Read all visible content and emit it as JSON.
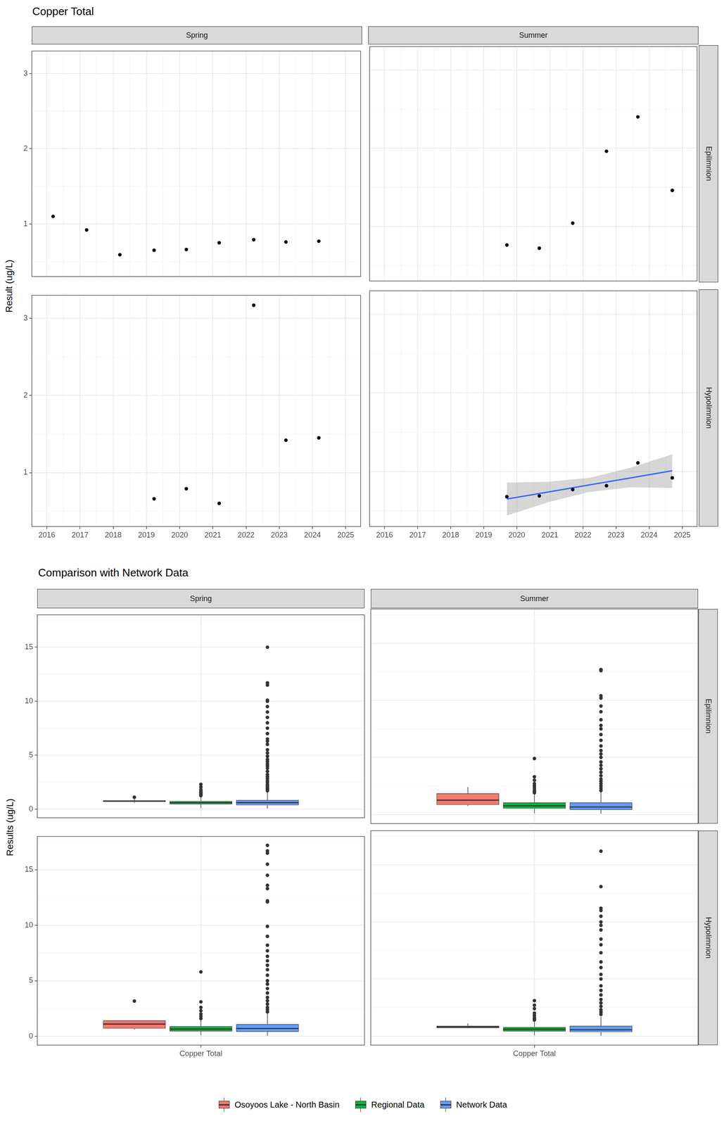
{
  "chart_data": [
    {
      "type": "scatter",
      "title": "Copper Total",
      "y_label": "Result (ug/L)",
      "columns": [
        "Spring",
        "Summer"
      ],
      "rows": [
        "Epilimnion",
        "Hypolimnion"
      ],
      "xlim": [
        2015.55,
        2025.45
      ],
      "xticks": [
        2016,
        2017,
        2018,
        2019,
        2020,
        2021,
        2022,
        2023,
        2024,
        2025
      ],
      "ylim": [
        0.3,
        3.3
      ],
      "yticks": [
        1,
        2,
        3
      ],
      "grid": true,
      "color": "#000000",
      "panels": [
        {
          "column": "Spring",
          "row": "Epilimnion",
          "x": [
            2016.19,
            2017.2,
            2018.2,
            2019.23,
            2020.2,
            2021.19,
            2022.23,
            2023.2,
            2024.19
          ],
          "values": [
            1.1,
            0.92,
            0.59,
            0.65,
            0.66,
            0.75,
            0.79,
            0.76,
            0.77
          ]
        },
        {
          "column": "Summer",
          "row": "Epilimnion",
          "x": [
            2019.7,
            2020.68,
            2021.69,
            2022.71,
            2023.66,
            2024.7
          ],
          "values": [
            0.76,
            0.72,
            1.04,
            1.96,
            2.4,
            1.46
          ]
        },
        {
          "column": "Spring",
          "row": "Hypolimnion",
          "x": [
            2019.23,
            2020.2,
            2021.19,
            2022.23,
            2023.2,
            2024.19
          ],
          "values": [
            0.66,
            0.79,
            0.6,
            3.17,
            1.42,
            1.45
          ]
        },
        {
          "column": "Summer",
          "row": "Hypolimnion",
          "x": [
            2019.7,
            2020.68,
            2021.69,
            2022.71,
            2023.66,
            2024.7
          ],
          "values": [
            0.68,
            0.69,
            0.77,
            0.82,
            1.11,
            0.92
          ],
          "trend": {
            "color": "#3366ff",
            "x": [
              2019.7,
              2020.95,
              2022.2,
              2023.45,
              2024.7
            ],
            "values": [
              0.65,
              0.74,
              0.83,
              0.92,
              1.01
            ],
            "lower": [
              0.44,
              0.61,
              0.74,
              0.8,
              0.79
            ],
            "upper": [
              0.86,
              0.87,
              0.92,
              1.05,
              1.22
            ]
          }
        }
      ]
    },
    {
      "type": "boxplot",
      "title": "Comparison with Network Data",
      "y_label": "Results (ug/L)",
      "columns": [
        "Spring",
        "Summer"
      ],
      "rows": [
        "Epilimnion",
        "Hypolimnion"
      ],
      "categories": [
        "Copper Total"
      ],
      "ylim": [
        -0.8,
        18
      ],
      "yticks": [
        0,
        5,
        10,
        15
      ],
      "grid": true,
      "legend": "bottom",
      "series": [
        {
          "name": "Osoyoos Lake - North Basin",
          "color": "#f8766d"
        },
        {
          "name": "Regional Data",
          "color": "#00ba38"
        },
        {
          "name": "Network Data",
          "color": "#619cff"
        }
      ],
      "panels": [
        {
          "column": "Spring",
          "row": "Epilimnion",
          "boxes": [
            {
              "min": 0.59,
              "q1": 0.66,
              "median": 0.76,
              "q3": 0.79,
              "max": 0.92,
              "outliers": [
                1.1
              ]
            },
            {
              "min": 0.1,
              "q1": 0.45,
              "median": 0.6,
              "q3": 0.75,
              "max": 1.15,
              "outliers": [
                1.25,
                1.35,
                1.45,
                1.55,
                1.65,
                1.8,
                2.05,
                2.3
              ]
            },
            {
              "min": 0.05,
              "q1": 0.35,
              "median": 0.6,
              "q3": 0.85,
              "max": 1.6,
              "outliers": [
                1.7,
                1.8,
                1.9,
                2.0,
                2.1,
                2.2,
                2.3,
                2.5,
                2.6,
                2.8,
                3.0,
                3.2,
                3.5,
                3.8,
                4.0,
                4.2,
                4.4,
                4.6,
                4.9,
                5.2,
                5.5,
                6.0,
                6.3,
                6.5,
                7.0,
                7.5,
                8.0,
                8.5,
                9.0,
                9.5,
                10.0,
                10.1,
                11.5,
                11.7,
                15.0
              ]
            }
          ]
        },
        {
          "column": "Summer",
          "row": "Epilimnion",
          "boxes": [
            {
              "min": 0.72,
              "q1": 0.83,
              "median": 1.25,
              "q3": 1.84,
              "max": 2.4,
              "outliers": []
            },
            {
              "min": 0.1,
              "q1": 0.5,
              "median": 0.75,
              "q3": 1.05,
              "max": 1.8,
              "outliers": [
                1.9,
                2.0,
                2.1,
                2.3,
                2.5,
                2.7,
                3.0,
                3.3,
                4.9
              ]
            },
            {
              "min": 0.05,
              "q1": 0.4,
              "median": 0.65,
              "q3": 1.05,
              "max": 2.0,
              "outliers": [
                2.1,
                2.3,
                2.5,
                2.7,
                2.9,
                3.1,
                3.4,
                3.7,
                4.0,
                4.3,
                4.6,
                5.0,
                5.3,
                5.6,
                6.0,
                6.5,
                7.0,
                7.5,
                7.8,
                8.3,
                9.0,
                9.5,
                10.2,
                10.4,
                12.6,
                12.7
              ]
            }
          ]
        },
        {
          "column": "Spring",
          "row": "Hypolimnion",
          "boxes": [
            {
              "min": 0.6,
              "q1": 0.69,
              "median": 1.1,
              "q3": 1.44,
              "max": 1.45,
              "outliers": [
                3.17
              ]
            },
            {
              "min": 0.1,
              "q1": 0.45,
              "median": 0.65,
              "q3": 0.9,
              "max": 1.5,
              "outliers": [
                1.6,
                1.8,
                2.0,
                2.3,
                2.6,
                3.1,
                5.8
              ]
            },
            {
              "min": 0.05,
              "q1": 0.4,
              "median": 0.7,
              "q3": 1.1,
              "max": 2.1,
              "outliers": [
                2.2,
                2.4,
                2.6,
                2.9,
                3.2,
                3.5,
                3.9,
                4.3,
                4.7,
                5.0,
                5.5,
                6.0,
                6.4,
                6.8,
                7.2,
                7.7,
                8.2,
                9.0,
                9.9,
                12.1,
                12.2,
                13.3,
                13.6,
                14.5,
                15.5,
                16.5,
                16.7,
                17.2
              ]
            }
          ]
        },
        {
          "column": "Summer",
          "row": "Hypolimnion",
          "boxes": [
            {
              "min": 0.68,
              "q1": 0.71,
              "median": 0.8,
              "q3": 0.9,
              "max": 1.11,
              "outliers": []
            },
            {
              "min": 0.05,
              "q1": 0.4,
              "median": 0.6,
              "q3": 0.8,
              "max": 1.3,
              "outliers": [
                1.4,
                1.5,
                1.6,
                1.8,
                2.0,
                2.4,
                2.7,
                3.1
              ]
            },
            {
              "min": 0.02,
              "q1": 0.35,
              "median": 0.55,
              "q3": 0.9,
              "max": 1.7,
              "outliers": [
                1.9,
                2.1,
                2.3,
                2.6,
                2.9,
                3.2,
                3.6,
                4.0,
                4.4,
                5.0,
                5.4,
                6.0,
                6.5,
                7.3,
                8.0,
                8.5,
                9.3,
                9.7,
                10.0,
                10.5,
                11.0,
                11.2,
                13.1,
                16.2
              ]
            }
          ]
        }
      ]
    }
  ]
}
